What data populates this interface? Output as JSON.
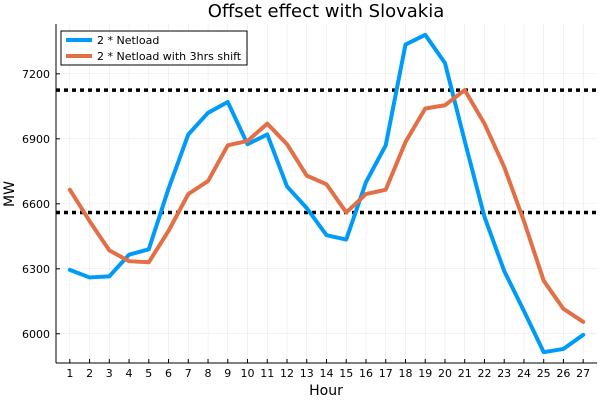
{
  "chart_data": {
    "type": "line",
    "title": "Offset effect with Slovakia",
    "xlabel": "Hour",
    "ylabel": "MW",
    "xlim": [
      0.3,
      27.7
    ],
    "ylim": [
      5865,
      7430
    ],
    "x_ticks": [
      1,
      2,
      3,
      4,
      5,
      6,
      7,
      8,
      9,
      10,
      11,
      12,
      13,
      14,
      15,
      16,
      17,
      18,
      19,
      20,
      21,
      22,
      23,
      24,
      25,
      26,
      27
    ],
    "y_ticks": [
      6000,
      6300,
      6600,
      6900,
      7200
    ],
    "grid": true,
    "legend_position": "top-left",
    "x": [
      1,
      2,
      3,
      4,
      5,
      6,
      7,
      8,
      9,
      10,
      11,
      12,
      13,
      14,
      15,
      16,
      17,
      18,
      19,
      20,
      21,
      22,
      23,
      24,
      25,
      26,
      27
    ],
    "series": [
      {
        "name": "2 * Netload",
        "color": "#009af9",
        "values": [
          6295,
          6260,
          6265,
          6365,
          6390,
          6670,
          6920,
          7020,
          7070,
          6875,
          6920,
          6680,
          6580,
          6455,
          6435,
          6700,
          6870,
          7335,
          7380,
          7250,
          6890,
          6540,
          6290,
          6105,
          5915,
          5930,
          5995
        ]
      },
      {
        "name": "2 * Netload with 3hrs shift",
        "color": "#e26f46",
        "values": [
          6665,
          6520,
          6385,
          6335,
          6330,
          6475,
          6645,
          6705,
          6870,
          6890,
          6970,
          6875,
          6730,
          6690,
          6560,
          6645,
          6665,
          6885,
          7040,
          7055,
          7125,
          6970,
          6770,
          6520,
          6245,
          6115,
          6055
        ]
      }
    ],
    "hlines": [
      {
        "y": 7125,
        "color": "#000000",
        "style": "dotted"
      },
      {
        "y": 6560,
        "color": "#000000",
        "style": "dotted"
      }
    ]
  }
}
